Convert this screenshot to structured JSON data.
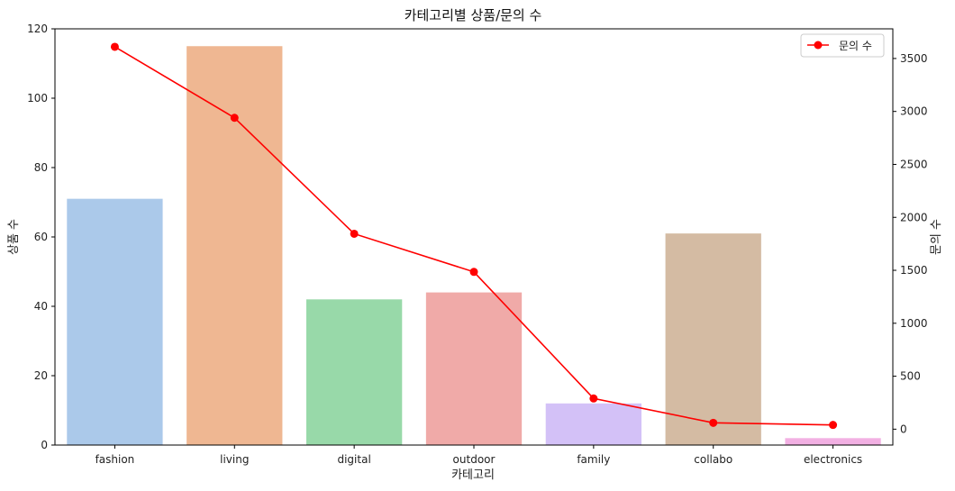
{
  "chart_data": {
    "type": "bar",
    "title": "카테고리별 상품/문의 수",
    "xlabel": "카테고리",
    "ylabel": "상품 수",
    "y2label": "문의 수",
    "categories": [
      "fashion",
      "living",
      "digital",
      "outdoor",
      "family",
      "collabo",
      "electronics"
    ],
    "series": [
      {
        "axis": "left",
        "kind": "bar",
        "values": [
          71,
          115,
          42,
          44,
          12,
          61,
          2
        ],
        "colors": [
          "#abc9ea",
          "#efb792",
          "#98d9a9",
          "#f0aaa8",
          "#d3c1f7",
          "#d4bba3",
          "#f2b0e3"
        ]
      },
      {
        "name": "문의 수",
        "axis": "right",
        "kind": "line",
        "color": "#ff0000",
        "values": [
          3610,
          2940,
          1845,
          1485,
          290,
          60,
          40
        ]
      }
    ],
    "ylim": [
      0,
      120
    ],
    "y2lim": [
      -150,
      3780
    ],
    "yticks": [
      0,
      20,
      40,
      60,
      80,
      100,
      120
    ],
    "y2ticks": [
      0,
      500,
      1000,
      1500,
      2000,
      2500,
      3000,
      3500
    ],
    "legend_position": "top-right",
    "grid": false
  }
}
